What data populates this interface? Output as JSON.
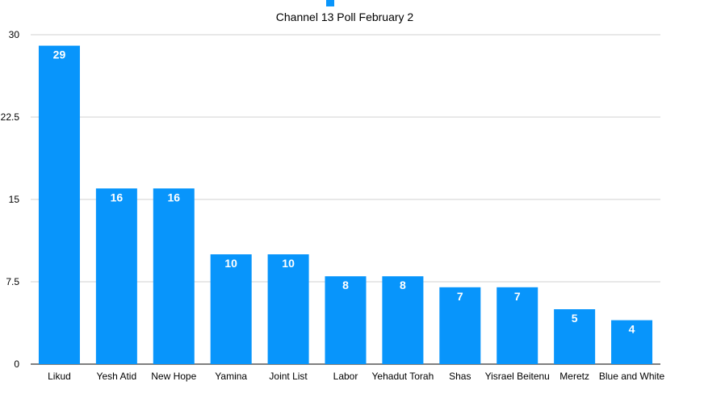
{
  "chart_data": {
    "type": "bar",
    "title": "Channel 13 Poll February 2",
    "categories": [
      "Likud",
      "Yesh Atid",
      "New Hope",
      "Yamina",
      "Joint List",
      "Labor",
      "Yehadut Torah",
      "Shas",
      "Yisrael Beitenu",
      "Meretz",
      "Blue and White"
    ],
    "series": [
      {
        "values": [
          29,
          16,
          16,
          10,
          10,
          8,
          8,
          7,
          7,
          5,
          4
        ]
      }
    ],
    "yticks": [
      "0",
      "7.5",
      "15",
      "22.5",
      "30"
    ],
    "ylim": [
      0,
      30
    ],
    "grid": true,
    "legend": "top",
    "bar_color": "#0895fb",
    "data_labels": true
  }
}
